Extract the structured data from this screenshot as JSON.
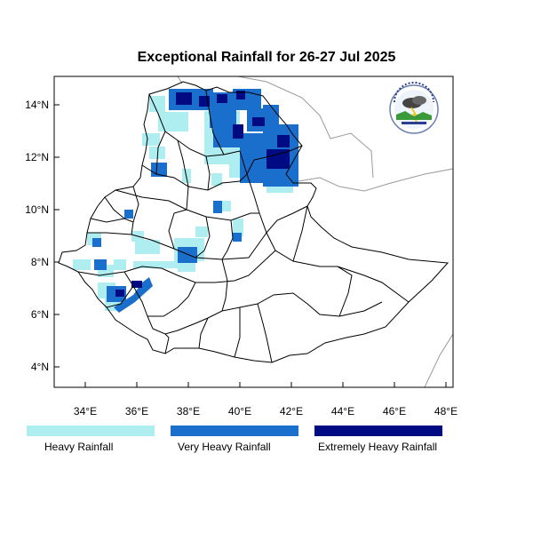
{
  "title": "Exceptional Rainfall for 26-27 Jul 2025",
  "y_ticks": [
    "4°N",
    "6°N",
    "8°N",
    "10°N",
    "12°N",
    "14°N"
  ],
  "x_ticks": [
    "34°E",
    "36°E",
    "38°E",
    "40°E",
    "42°E",
    "44°E",
    "46°E",
    "48°E"
  ],
  "legend": [
    {
      "label": "Heavy Rainfall",
      "color": "#aeeef0"
    },
    {
      "label": "Very Heavy Rainfall",
      "color": "#1a6fcc"
    },
    {
      "label": "Extremely Heavy Rainfall",
      "color": "#000a82"
    }
  ],
  "colors": {
    "heavy": "#aeeef0",
    "very_heavy": "#1a6fcc",
    "extreme": "#000a82",
    "border": "#000000",
    "neighbor": "#9a9a9a"
  },
  "logo_icon": "agency-logo-icon"
}
